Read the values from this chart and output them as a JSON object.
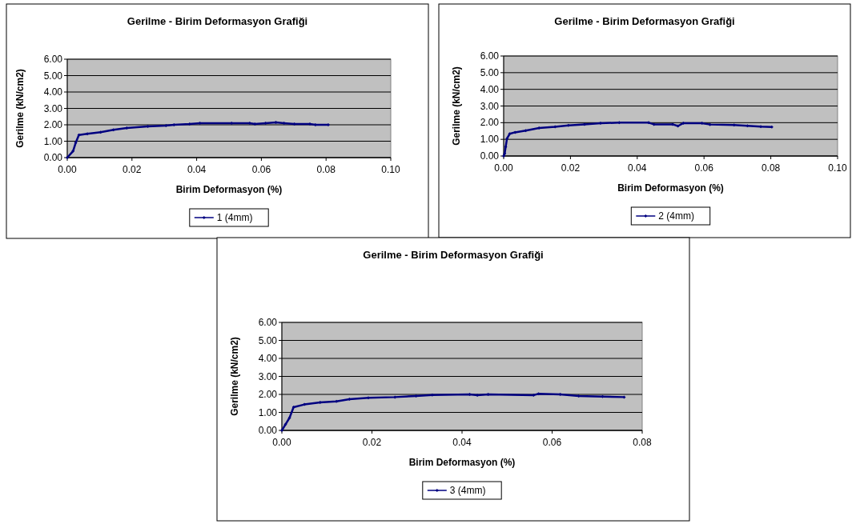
{
  "chart_data": [
    {
      "type": "line",
      "title": "Gerilme - Birim Deformasyon Grafiği",
      "xlabel": "Birim Deformasyon (%)",
      "ylabel": "Gerilme (kN/cm2)",
      "xlim": [
        0,
        0.1
      ],
      "ylim": [
        0,
        6
      ],
      "xticks": [
        {
          "value": 0,
          "label": "0.00"
        },
        {
          "value": 0.02,
          "label": "0.02"
        },
        {
          "value": 0.04,
          "label": "0.04"
        },
        {
          "value": 0.06,
          "label": "0.06"
        },
        {
          "value": 0.08,
          "label": "0.08"
        },
        {
          "value": 0.1,
          "label": "0.10"
        }
      ],
      "yticks": [
        {
          "value": 0,
          "label": "0.00"
        },
        {
          "value": 1,
          "label": "1.00"
        },
        {
          "value": 2,
          "label": "2.00"
        },
        {
          "value": 3,
          "label": "3.00"
        },
        {
          "value": 4,
          "label": "4.00"
        },
        {
          "value": 5,
          "label": "5.00"
        },
        {
          "value": 6,
          "label": "6.00"
        }
      ],
      "grid": "y",
      "legend": "bottom",
      "marker": "diamond",
      "line_style": "solid",
      "series": [
        {
          "name": "1 (4mm)",
          "color": "#000080",
          "x": [
            0,
            0.0018,
            0.0026,
            0.0036,
            0.0062,
            0.0103,
            0.0143,
            0.0184,
            0.0249,
            0.0305,
            0.033,
            0.0378,
            0.041,
            0.0508,
            0.0564,
            0.058,
            0.0613,
            0.0645,
            0.067,
            0.0702,
            0.075,
            0.0767,
            0.0807
          ],
          "values": [
            0,
            0.4,
            0.9,
            1.38,
            1.45,
            1.55,
            1.7,
            1.8,
            1.9,
            1.95,
            2.0,
            2.05,
            2.1,
            2.1,
            2.1,
            2.05,
            2.1,
            2.15,
            2.1,
            2.05,
            2.05,
            2.0,
            2.0
          ]
        }
      ]
    },
    {
      "type": "line",
      "title": "Gerilme - Birim Deformasyon Grafiği",
      "xlabel": "Birim Deformasyon (%)",
      "ylabel": "Gerilme (kN/cm2)",
      "xlim": [
        0,
        0.1
      ],
      "ylim": [
        0,
        6
      ],
      "xticks": [
        {
          "value": 0,
          "label": "0.00"
        },
        {
          "value": 0.02,
          "label": "0.02"
        },
        {
          "value": 0.04,
          "label": "0.04"
        },
        {
          "value": 0.06,
          "label": "0.06"
        },
        {
          "value": 0.08,
          "label": "0.08"
        },
        {
          "value": 0.1,
          "label": "0.10"
        }
      ],
      "yticks": [
        {
          "value": 0,
          "label": "0.00"
        },
        {
          "value": 1,
          "label": "1.00"
        },
        {
          "value": 2,
          "label": "2.00"
        },
        {
          "value": 3,
          "label": "3.00"
        },
        {
          "value": 4,
          "label": "4.00"
        },
        {
          "value": 5,
          "label": "5.00"
        },
        {
          "value": 6,
          "label": "6.00"
        }
      ],
      "grid": "y",
      "legend": "bottom",
      "marker": "diamond",
      "line_style": "solid",
      "series": [
        {
          "name": "2 (4mm)",
          "color": "#000080",
          "x": [
            0,
            0.0003,
            0.0006,
            0.001,
            0.0018,
            0.0034,
            0.0066,
            0.0106,
            0.0154,
            0.0194,
            0.0242,
            0.029,
            0.0346,
            0.0434,
            0.045,
            0.0506,
            0.0522,
            0.0538,
            0.0594,
            0.0618,
            0.069,
            0.073,
            0.077,
            0.0803
          ],
          "values": [
            0,
            0.15,
            0.55,
            1.05,
            1.33,
            1.42,
            1.52,
            1.68,
            1.75,
            1.84,
            1.9,
            1.97,
            2.0,
            2.0,
            1.9,
            1.9,
            1.8,
            1.97,
            1.97,
            1.89,
            1.86,
            1.81,
            1.76,
            1.74
          ]
        }
      ]
    },
    {
      "type": "line",
      "title": "Gerilme - Birim Deformasyon Grafiği",
      "xlabel": "Birim Deformasyon (%)",
      "ylabel": "Gerilme (kN/cm2)",
      "xlim": [
        0,
        0.08
      ],
      "ylim": [
        0,
        6
      ],
      "xticks": [
        {
          "value": 0,
          "label": "0.00"
        },
        {
          "value": 0.02,
          "label": "0.02"
        },
        {
          "value": 0.04,
          "label": "0.04"
        },
        {
          "value": 0.06,
          "label": "0.06"
        },
        {
          "value": 0.08,
          "label": "0.08"
        }
      ],
      "yticks": [
        {
          "value": 0,
          "label": "0.00"
        },
        {
          "value": 1,
          "label": "1.00"
        },
        {
          "value": 2,
          "label": "2.00"
        },
        {
          "value": 3,
          "label": "3.00"
        },
        {
          "value": 4,
          "label": "4.00"
        },
        {
          "value": 5,
          "label": "5.00"
        },
        {
          "value": 6,
          "label": "6.00"
        }
      ],
      "grid": "y",
      "legend": "bottom",
      "marker": "diamond",
      "line_style": "solid",
      "series": [
        {
          "name": "3 (4mm)",
          "color": "#000080",
          "x": [
            0,
            0.0008,
            0.0017,
            0.0026,
            0.005,
            0.0085,
            0.0121,
            0.015,
            0.0192,
            0.0251,
            0.0298,
            0.0334,
            0.0417,
            0.0434,
            0.0458,
            0.0559,
            0.057,
            0.0618,
            0.0659,
            0.0712,
            0.076
          ],
          "values": [
            0,
            0.33,
            0.7,
            1.29,
            1.44,
            1.56,
            1.61,
            1.73,
            1.81,
            1.85,
            1.91,
            1.97,
            2.0,
            1.96,
            2.0,
            1.96,
            2.03,
            2.0,
            1.91,
            1.88,
            1.85
          ]
        }
      ]
    }
  ]
}
